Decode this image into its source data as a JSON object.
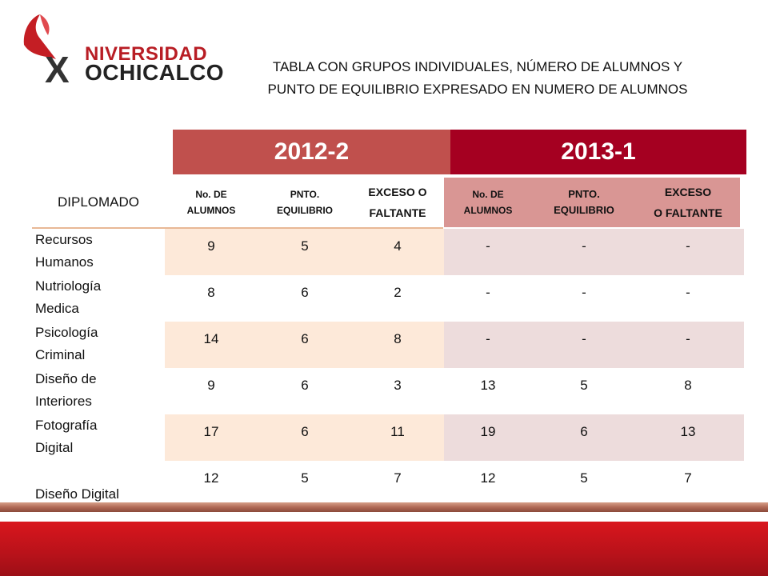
{
  "logo": {
    "line1": "NIVERSIDAD",
    "line2": "OCHICALCO"
  },
  "title": {
    "line1": "TABLA CON GRUPOS INDIVIDUALES, NÚMERO DE ALUMNOS Y",
    "line2": "PUNTO DE EQUILIBRIO EXPRESADO EN NUMERO DE ALUMNOS"
  },
  "periods": [
    "2012-2",
    "2013-1"
  ],
  "header": {
    "diplomado": "DIPLOMADO",
    "p1": {
      "col1": [
        "No. DE",
        "ALUMNOS"
      ],
      "col2": [
        "PNTO.",
        "EQUILIBRIO"
      ],
      "col3": [
        "EXCESO O",
        "FALTANTE"
      ]
    },
    "p2": {
      "col1": [
        "No. DE",
        "ALUMNOS"
      ],
      "col2": [
        "PNTO.",
        "EQUILIBRIO"
      ],
      "col3": [
        "EXCESO",
        "O FALTANTE"
      ]
    }
  },
  "rows": [
    {
      "name": [
        "Recursos",
        "Humanos"
      ],
      "values": [
        "9",
        "5",
        "4",
        "-",
        "-",
        "-"
      ]
    },
    {
      "name": [
        "Nutriología",
        "Medica"
      ],
      "values": [
        "8",
        "6",
        "2",
        "-",
        "-",
        "-"
      ]
    },
    {
      "name": [
        "Psicología",
        "Criminal"
      ],
      "values": [
        "14",
        "6",
        "8",
        "-",
        "-",
        "-"
      ]
    },
    {
      "name": [
        "Diseño de",
        "Interiores"
      ],
      "values": [
        "9",
        "6",
        "3",
        "13",
        "5",
        "8"
      ]
    },
    {
      "name": [
        "Fotografía",
        "Digital"
      ],
      "values": [
        "17",
        "6",
        "11",
        "19",
        "6",
        "13"
      ]
    },
    {
      "name": [
        "",
        "Diseño Digital"
      ],
      "values": [
        "12",
        "5",
        "7",
        "12",
        "5",
        "7"
      ]
    }
  ],
  "colors": {
    "period1": "#c0504d",
    "period2": "#a50021",
    "p2_header": "#d99694",
    "stripe_a": "#fde9d9",
    "stripe_b": "#eddcdc",
    "band": "#c8141b"
  }
}
